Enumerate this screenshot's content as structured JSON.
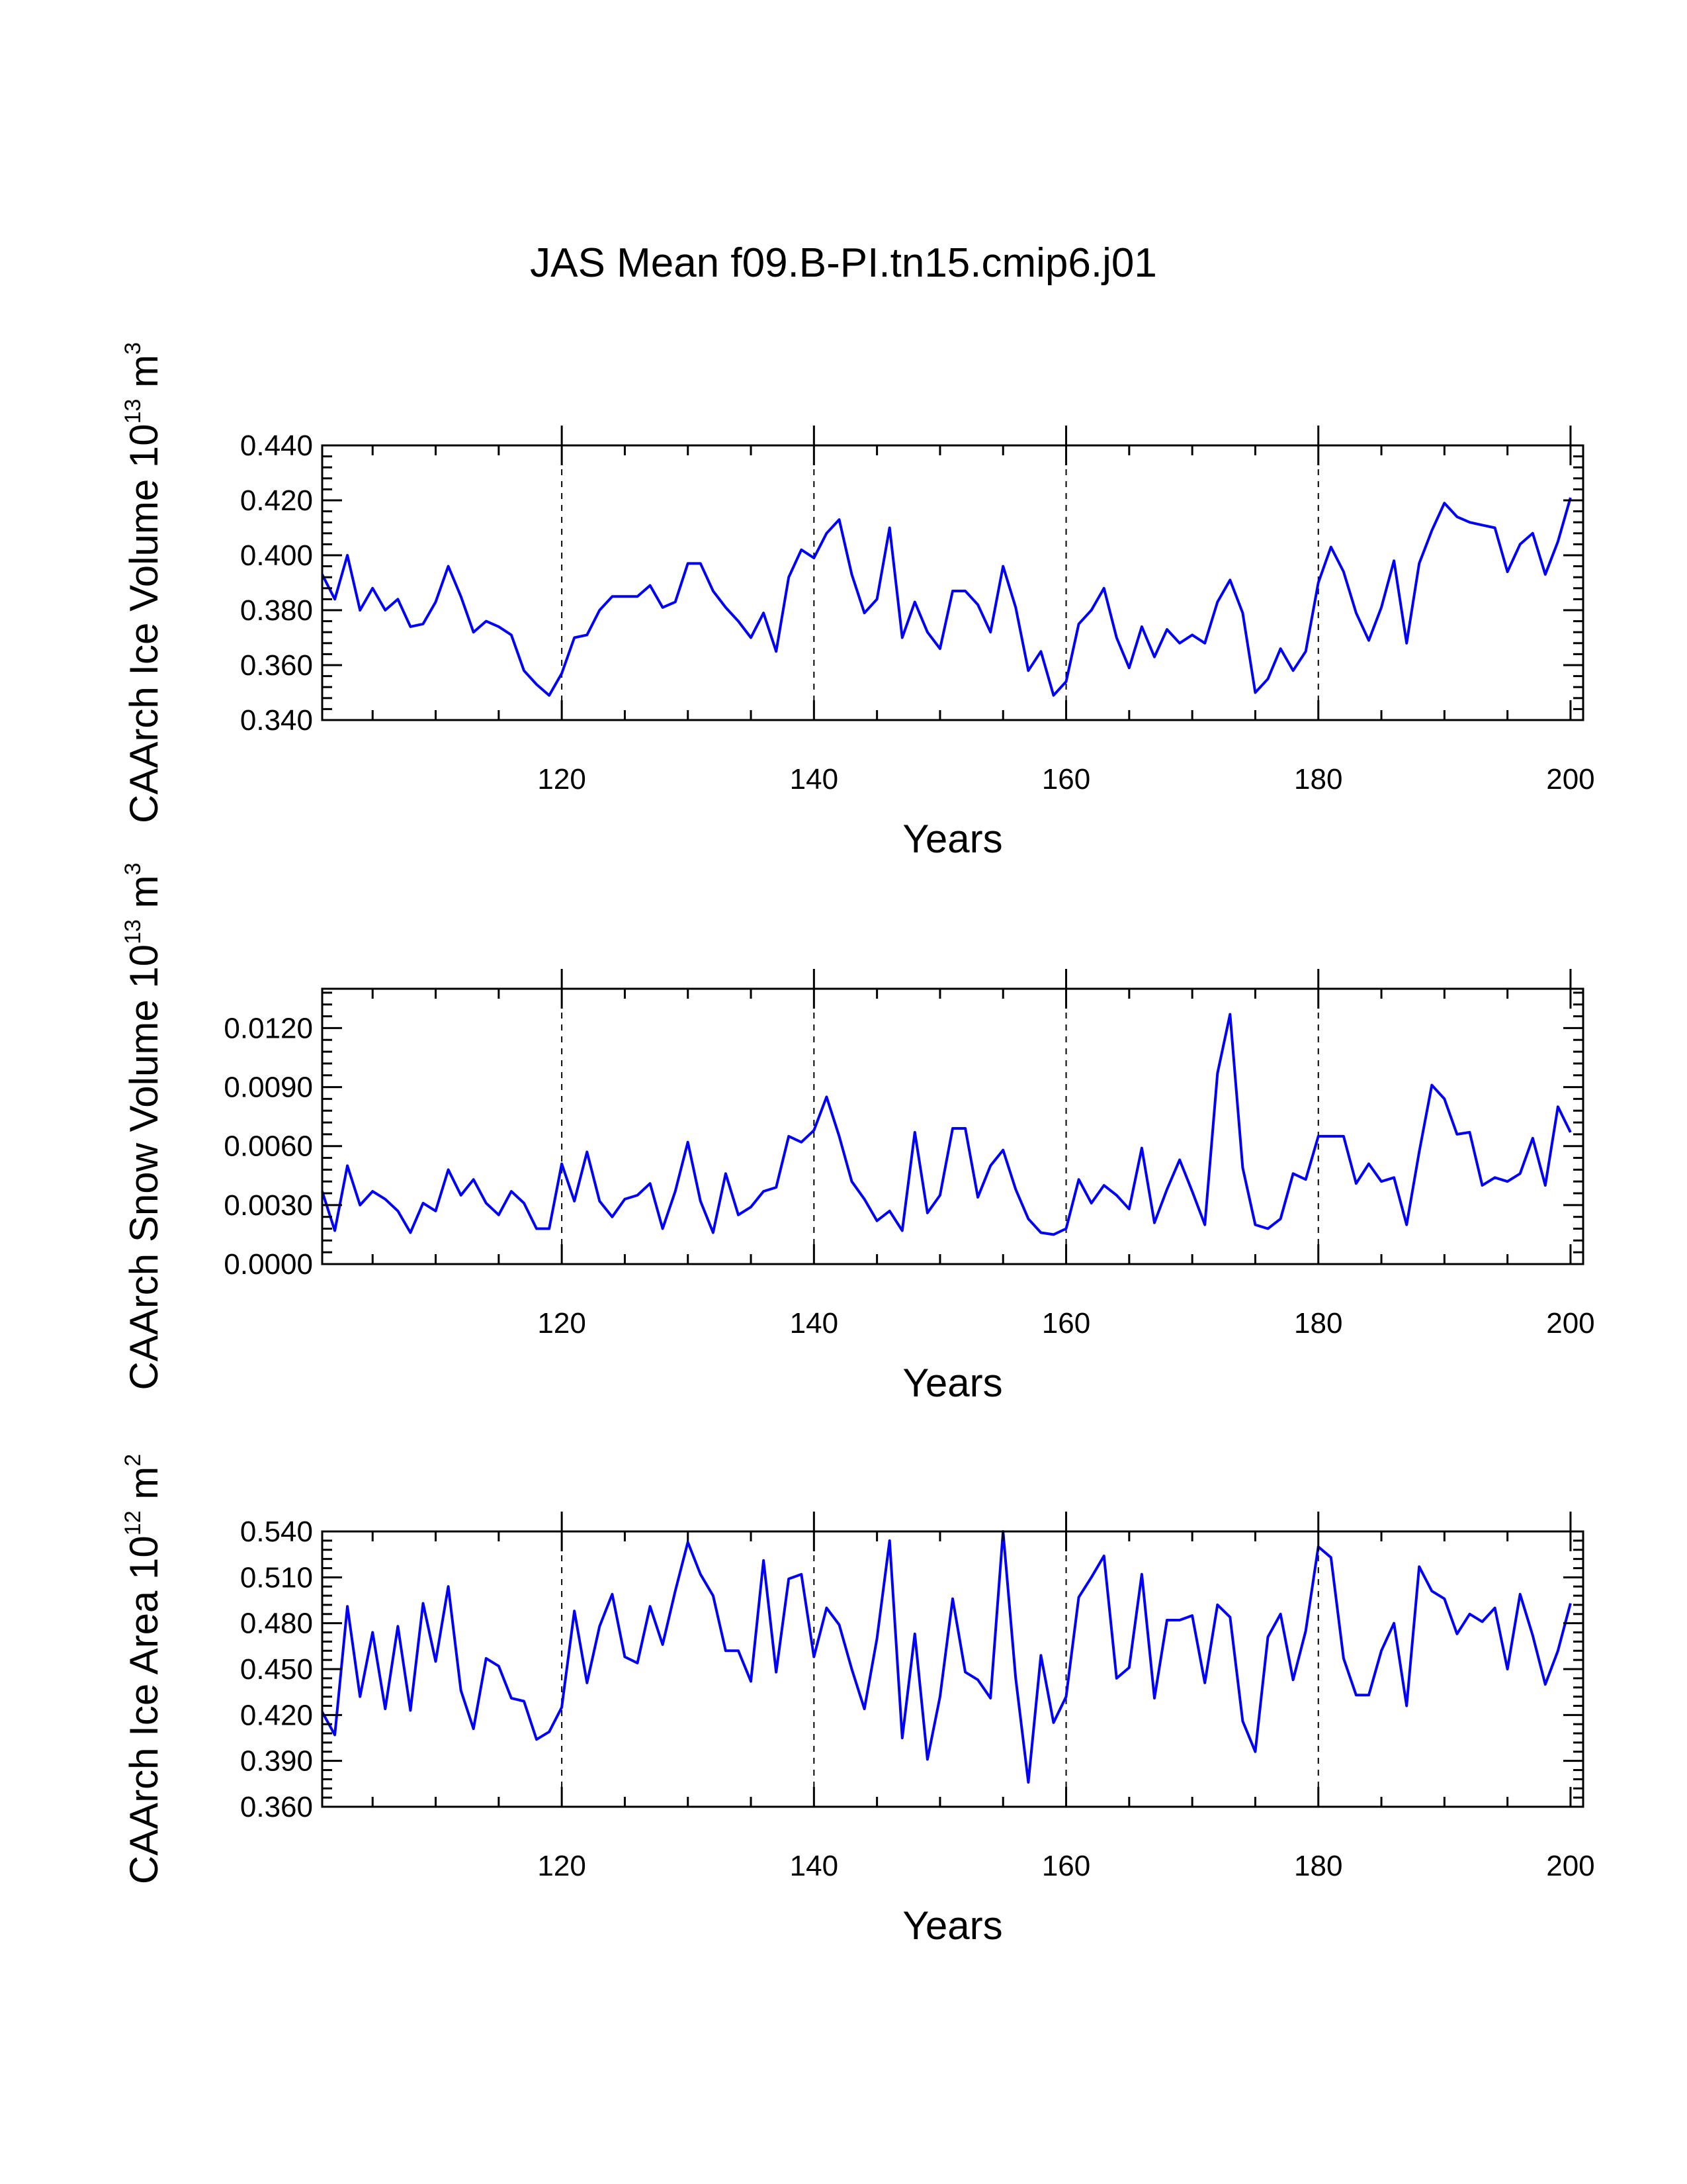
{
  "title": "JAS Mean f09.B-PI.tn15.cmip6.j01",
  "colors": {
    "series": "#0000ff",
    "axis": "#000000",
    "grid": "#000000"
  },
  "chart_data": [
    {
      "type": "line",
      "name": "ice-volume",
      "ylabel": {
        "main": "CAArch Ice Volume 10",
        "exp": "13",
        "unit": " m",
        "unit_exp": "3"
      },
      "xlabel": "Years",
      "xlim": [
        101,
        201
      ],
      "ylim": [
        0.34,
        0.44
      ],
      "x_ticks": [
        120,
        140,
        160,
        180,
        200
      ],
      "x_tick_labels": [
        "120",
        "140",
        "160",
        "180",
        "200"
      ],
      "y_ticks": [
        0.34,
        0.36,
        0.38,
        0.4,
        0.42,
        0.44
      ],
      "y_tick_labels": [
        "0.340",
        "0.360",
        "0.380",
        "0.400",
        "0.420",
        "0.440"
      ],
      "gridlines_x": [
        120,
        140,
        160,
        180
      ],
      "x_start": 101,
      "values": [
        0.393,
        0.384,
        0.4,
        0.38,
        0.388,
        0.38,
        0.384,
        0.374,
        0.375,
        0.383,
        0.396,
        0.385,
        0.372,
        0.376,
        0.374,
        0.371,
        0.358,
        0.353,
        0.349,
        0.357,
        0.37,
        0.371,
        0.38,
        0.385,
        0.385,
        0.385,
        0.389,
        0.381,
        0.383,
        0.397,
        0.397,
        0.387,
        0.381,
        0.376,
        0.37,
        0.379,
        0.365,
        0.392,
        0.402,
        0.399,
        0.408,
        0.413,
        0.393,
        0.379,
        0.384,
        0.41,
        0.37,
        0.383,
        0.372,
        0.366,
        0.387,
        0.387,
        0.382,
        0.372,
        0.396,
        0.381,
        0.358,
        0.365,
        0.349,
        0.354,
        0.375,
        0.38,
        0.388,
        0.37,
        0.359,
        0.374,
        0.363,
        0.373,
        0.368,
        0.371,
        0.368,
        0.383,
        0.391,
        0.379,
        0.35,
        0.355,
        0.366,
        0.358,
        0.365,
        0.39,
        0.403,
        0.394,
        0.379,
        0.369,
        0.381,
        0.398,
        0.368,
        0.397,
        0.409,
        0.419,
        0.414,
        0.412,
        0.411,
        0.41,
        0.394,
        0.404,
        0.408,
        0.393,
        0.405,
        0.421
      ]
    },
    {
      "type": "line",
      "name": "snow-volume",
      "ylabel": {
        "main": "CAArch Snow Volume 10",
        "exp": "13",
        "unit": " m",
        "unit_exp": "3"
      },
      "xlabel": "Years",
      "xlim": [
        101,
        201
      ],
      "ylim": [
        0.0,
        0.014
      ],
      "x_ticks": [
        120,
        140,
        160,
        180,
        200
      ],
      "x_tick_labels": [
        "120",
        "140",
        "160",
        "180",
        "200"
      ],
      "y_ticks": [
        0.0,
        0.003,
        0.006,
        0.009,
        0.012
      ],
      "y_tick_labels": [
        "0.0000",
        "0.0030",
        "0.0060",
        "0.0090",
        "0.0120"
      ],
      "gridlines_x": [
        120,
        140,
        160,
        180
      ],
      "x_start": 101,
      "values": [
        0.0037,
        0.0017,
        0.005,
        0.003,
        0.0037,
        0.0033,
        0.0027,
        0.0016,
        0.0031,
        0.0027,
        0.0048,
        0.0035,
        0.0043,
        0.0031,
        0.0025,
        0.0037,
        0.0031,
        0.0018,
        0.0018,
        0.0051,
        0.0032,
        0.0057,
        0.0032,
        0.0024,
        0.0033,
        0.0035,
        0.0041,
        0.0018,
        0.0037,
        0.0062,
        0.0032,
        0.0016,
        0.0046,
        0.0025,
        0.0029,
        0.0037,
        0.0039,
        0.0065,
        0.0062,
        0.0068,
        0.0085,
        0.0065,
        0.0042,
        0.0033,
        0.0022,
        0.0027,
        0.0017,
        0.0067,
        0.0026,
        0.0035,
        0.0069,
        0.0069,
        0.0034,
        0.005,
        0.0058,
        0.0038,
        0.0023,
        0.0016,
        0.0015,
        0.0018,
        0.0043,
        0.0031,
        0.004,
        0.0035,
        0.0028,
        0.0059,
        0.0021,
        0.0038,
        0.0053,
        0.0037,
        0.002,
        0.0097,
        0.0127,
        0.0049,
        0.002,
        0.0018,
        0.0023,
        0.0046,
        0.0043,
        0.0065,
        0.0065,
        0.0065,
        0.0041,
        0.0051,
        0.0042,
        0.0044,
        0.002,
        0.0057,
        0.0091,
        0.0084,
        0.0066,
        0.0067,
        0.004,
        0.0044,
        0.0042,
        0.0046,
        0.0064,
        0.004,
        0.008,
        0.0067
      ]
    },
    {
      "type": "line",
      "name": "ice-area",
      "ylabel": {
        "main": "CAArch Ice Area 10",
        "exp": "12",
        "unit": " m",
        "unit_exp": "2"
      },
      "xlabel": "Years",
      "xlim": [
        101,
        201
      ],
      "ylim": [
        0.36,
        0.54
      ],
      "x_ticks": [
        120,
        140,
        160,
        180,
        200
      ],
      "x_tick_labels": [
        "120",
        "140",
        "160",
        "180",
        "200"
      ],
      "y_ticks": [
        0.36,
        0.39,
        0.42,
        0.45,
        0.48,
        0.51,
        0.54
      ],
      "y_tick_labels": [
        "0.360",
        "0.390",
        "0.420",
        "0.450",
        "0.480",
        "0.510",
        "0.540"
      ],
      "gridlines_x": [
        120,
        140,
        160,
        180
      ],
      "x_start": 101,
      "values": [
        0.422,
        0.407,
        0.491,
        0.432,
        0.474,
        0.424,
        0.478,
        0.423,
        0.493,
        0.455,
        0.504,
        0.436,
        0.411,
        0.457,
        0.452,
        0.431,
        0.429,
        0.404,
        0.409,
        0.425,
        0.488,
        0.441,
        0.478,
        0.499,
        0.458,
        0.454,
        0.491,
        0.466,
        0.501,
        0.533,
        0.512,
        0.498,
        0.462,
        0.462,
        0.442,
        0.521,
        0.448,
        0.509,
        0.512,
        0.458,
        0.49,
        0.479,
        0.45,
        0.424,
        0.47,
        0.534,
        0.405,
        0.473,
        0.391,
        0.432,
        0.496,
        0.448,
        0.443,
        0.431,
        0.54,
        0.444,
        0.376,
        0.459,
        0.415,
        0.432,
        0.497,
        0.51,
        0.524,
        0.444,
        0.451,
        0.512,
        0.431,
        0.482,
        0.482,
        0.485,
        0.441,
        0.492,
        0.484,
        0.416,
        0.396,
        0.471,
        0.486,
        0.443,
        0.475,
        0.53,
        0.523,
        0.457,
        0.433,
        0.433,
        0.462,
        0.48,
        0.426,
        0.517,
        0.501,
        0.496,
        0.473,
        0.486,
        0.481,
        0.49,
        0.45,
        0.499,
        0.472,
        0.44,
        0.462,
        0.493
      ]
    }
  ]
}
